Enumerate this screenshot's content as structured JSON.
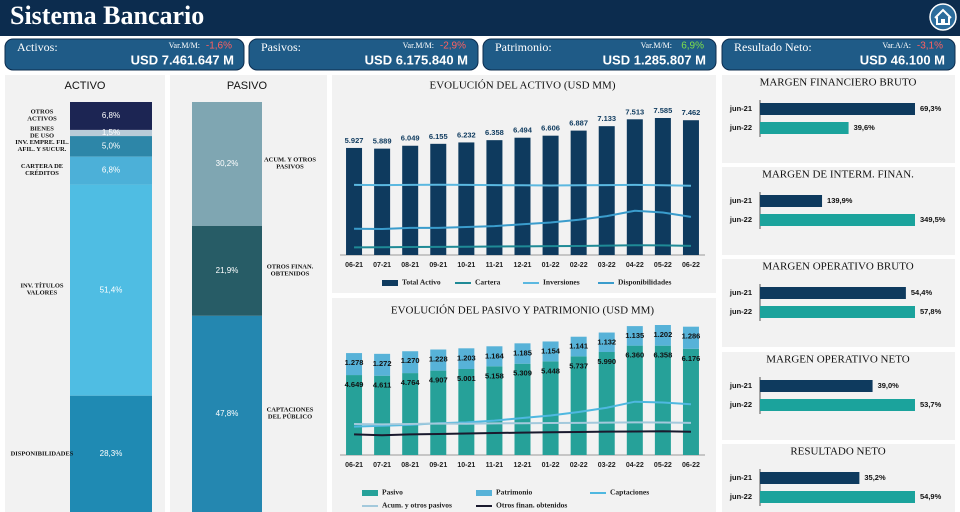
{
  "header": {
    "title": "Sistema Bancario"
  },
  "kpis": [
    {
      "label": "Activos:",
      "change_label": "Var.M/M:",
      "change": "-1,6%",
      "change_color": "#ff6060",
      "value": "USD 7.461.647 M"
    },
    {
      "label": "Pasivos:",
      "change_label": "Var.M/M:",
      "change": "-2,9%",
      "change_color": "#ff6060",
      "value": "USD 6.175.840 M"
    },
    {
      "label": "Patrimonio:",
      "change_label": "Var.M/M:",
      "change": "6,9%",
      "change_color": "#7ee04a",
      "value": "USD 1.285.807 M"
    },
    {
      "label": "Resultado Neto:",
      "change_label": "Var.A/A:",
      "change": "-3,1%",
      "change_color": "#ff6060",
      "value": "USD 46.100 M"
    }
  ],
  "chart_data": [
    {
      "type": "share",
      "title": "ACTIVO",
      "categories": [
        "OTROS\nACTIVOS",
        "BIENES\nDE USO",
        "INV. EMPRE. FIL.\nAFIL. Y SUCUR.",
        "CARTERA DE\nCRÉDITOS",
        "INV. TÍTULOS\nVALORES",
        "DISPONIBILIDADES"
      ],
      "values": [
        6.8,
        1.5,
        5.0,
        6.8,
        51.4,
        28.3
      ],
      "value_labels": [
        "6,8%",
        "1,5%",
        "5,0%",
        "6,8%",
        "51,4%",
        "28,3%"
      ],
      "colors": [
        "#1c2553",
        "#b9cbd8",
        "#2d86a8",
        "#4cb0d8",
        "#4fbde3",
        "#1f8ab3"
      ]
    },
    {
      "type": "share",
      "title": "PASIVO",
      "categories": [
        "ACUM. Y OTROS\nPASIVOS",
        "OTROS FINAN.\nOBTENIDOS",
        "CAPTACIONES\nDEL PÚBLICO"
      ],
      "values": [
        30.2,
        21.9,
        47.8
      ],
      "value_labels": [
        "30,2%",
        "21,9%",
        "47,8%"
      ],
      "colors": [
        "#7fa6b2",
        "#275c66",
        "#2487b0"
      ]
    },
    {
      "type": "combo",
      "title": "EVOLUCIÓN DEL ACTIVO (USD MM)",
      "categories": [
        "06-21",
        "07-21",
        "08-21",
        "09-21",
        "10-21",
        "11-21",
        "12-21",
        "01-22",
        "02-22",
        "03-22",
        "04-22",
        "05-22",
        "06-22"
      ],
      "series": [
        {
          "name": "Total Activo",
          "type": "bar",
          "color": "#0e3a5e",
          "values": [
            5927,
            5889,
            6049,
            6155,
            6232,
            6358,
            6494,
            6606,
            6887,
            7133,
            7513,
            7585,
            7462
          ],
          "value_labels": [
            "5.927",
            "5.889",
            "6.049",
            "6.155",
            "6.232",
            "6.358",
            "6.494",
            "6.606",
            "6.887",
            "7.133",
            "7.513",
            "7.585",
            "7.462"
          ]
        },
        {
          "name": "Cartera",
          "type": "line",
          "color": "#1f8a96",
          "values": [
            420,
            430,
            440,
            450,
            460,
            470,
            480,
            490,
            500,
            520,
            540,
            530,
            507
          ]
        },
        {
          "name": "Inversiones",
          "type": "line",
          "color": "#5bb8e0",
          "values": [
            3880,
            3870,
            3880,
            3890,
            3880,
            3870,
            3860,
            3850,
            3860,
            3870,
            3880,
            3860,
            3835
          ]
        },
        {
          "name": "Disponibilidades",
          "type": "line",
          "color": "#3a9ccc",
          "values": [
            1450,
            1440,
            1500,
            1500,
            1550,
            1600,
            1700,
            1800,
            1950,
            2150,
            2450,
            2350,
            2112
          ]
        }
      ]
    },
    {
      "type": "combo",
      "title": "EVOLUCIÓN DEL PASIVO Y PATRIMONIO (USD MM)",
      "categories": [
        "06-21",
        "07-21",
        "08-21",
        "09-21",
        "10-21",
        "11-21",
        "12-21",
        "01-22",
        "02-22",
        "03-22",
        "04-22",
        "05-22",
        "06-22"
      ],
      "series": [
        {
          "name": "Pasivo",
          "type": "bar",
          "color": "#26a199",
          "values": [
            4649,
            4611,
            4764,
            4907,
            5001,
            5158,
            5309,
            5448,
            5737,
            5990,
            6360,
            6358,
            6176
          ],
          "value_labels": [
            "4.649",
            "4.611",
            "4.764",
            "4.907",
            "5.001",
            "5.158",
            "5.309",
            "5.448",
            "5.737",
            "5.990",
            "6.360",
            "6.358",
            "6.176"
          ]
        },
        {
          "name": "Patrimonio",
          "type": "bar",
          "color": "#57b2d8",
          "values": [
            1278,
            1272,
            1270,
            1228,
            1203,
            1164,
            1185,
            1154,
            1141,
            1132,
            1135,
            1202,
            1286
          ],
          "value_labels": [
            "1.278",
            "1.272",
            "1.270",
            "1.228",
            "1.203",
            "1.164",
            "1.185",
            "1.154",
            "1.141",
            "1.132",
            "1.135",
            "1.202",
            "1.286"
          ]
        },
        {
          "name": "Captaciones",
          "type": "line",
          "color": "#4fb8e0",
          "values": [
            1650,
            1700,
            1750,
            1850,
            1900,
            2000,
            2150,
            2300,
            2500,
            2750,
            3100,
            3050,
            2952
          ]
        },
        {
          "name": "Acum. y otros pasivos",
          "type": "line",
          "color": "#a3c9dc",
          "values": [
            1800,
            1780,
            1800,
            1830,
            1820,
            1840,
            1850,
            1860,
            1870,
            1880,
            1900,
            1890,
            1865
          ]
        },
        {
          "name": "Otros finan. obtenidos",
          "type": "line",
          "color": "#1a1a2e",
          "values": [
            1200,
            1150,
            1200,
            1220,
            1250,
            1280,
            1300,
            1320,
            1340,
            1360,
            1370,
            1380,
            1352
          ]
        }
      ]
    },
    {
      "type": "hbar",
      "title": "MARGEN FINANCIERO BRUTO",
      "categories": [
        "jun-21",
        "jun-22"
      ],
      "values": [
        69.3,
        39.6
      ],
      "value_labels": [
        "69,3%",
        "39,6%"
      ],
      "colors": [
        "#0e3a5e",
        "#1ba39c"
      ]
    },
    {
      "type": "hbar",
      "title": "MARGEN DE INTERM. FINAN.",
      "categories": [
        "jun-21",
        "jun-22"
      ],
      "values": [
        139.9,
        349.5
      ],
      "value_labels": [
        "139,9%",
        "349,5%"
      ],
      "colors": [
        "#0e3a5e",
        "#1ba39c"
      ]
    },
    {
      "type": "hbar",
      "title": "MARGEN OPERATIVO BRUTO",
      "categories": [
        "jun-21",
        "jun-22"
      ],
      "values": [
        54.4,
        57.8
      ],
      "value_labels": [
        "54,4%",
        "57,8%"
      ],
      "colors": [
        "#0e3a5e",
        "#1ba39c"
      ]
    },
    {
      "type": "hbar",
      "title": "MARGEN OPERATIVO NETO",
      "categories": [
        "jun-21",
        "jun-22"
      ],
      "values": [
        39.0,
        53.7
      ],
      "value_labels": [
        "39,0%",
        "53,7%"
      ],
      "colors": [
        "#0e3a5e",
        "#1ba39c"
      ]
    },
    {
      "type": "hbar",
      "title": "RESULTADO NETO",
      "categories": [
        "jun-21",
        "jun-22"
      ],
      "values": [
        35.2,
        54.9
      ],
      "value_labels": [
        "35,2%",
        "54,9%"
      ],
      "colors": [
        "#0e3a5e",
        "#1ba39c"
      ]
    }
  ]
}
